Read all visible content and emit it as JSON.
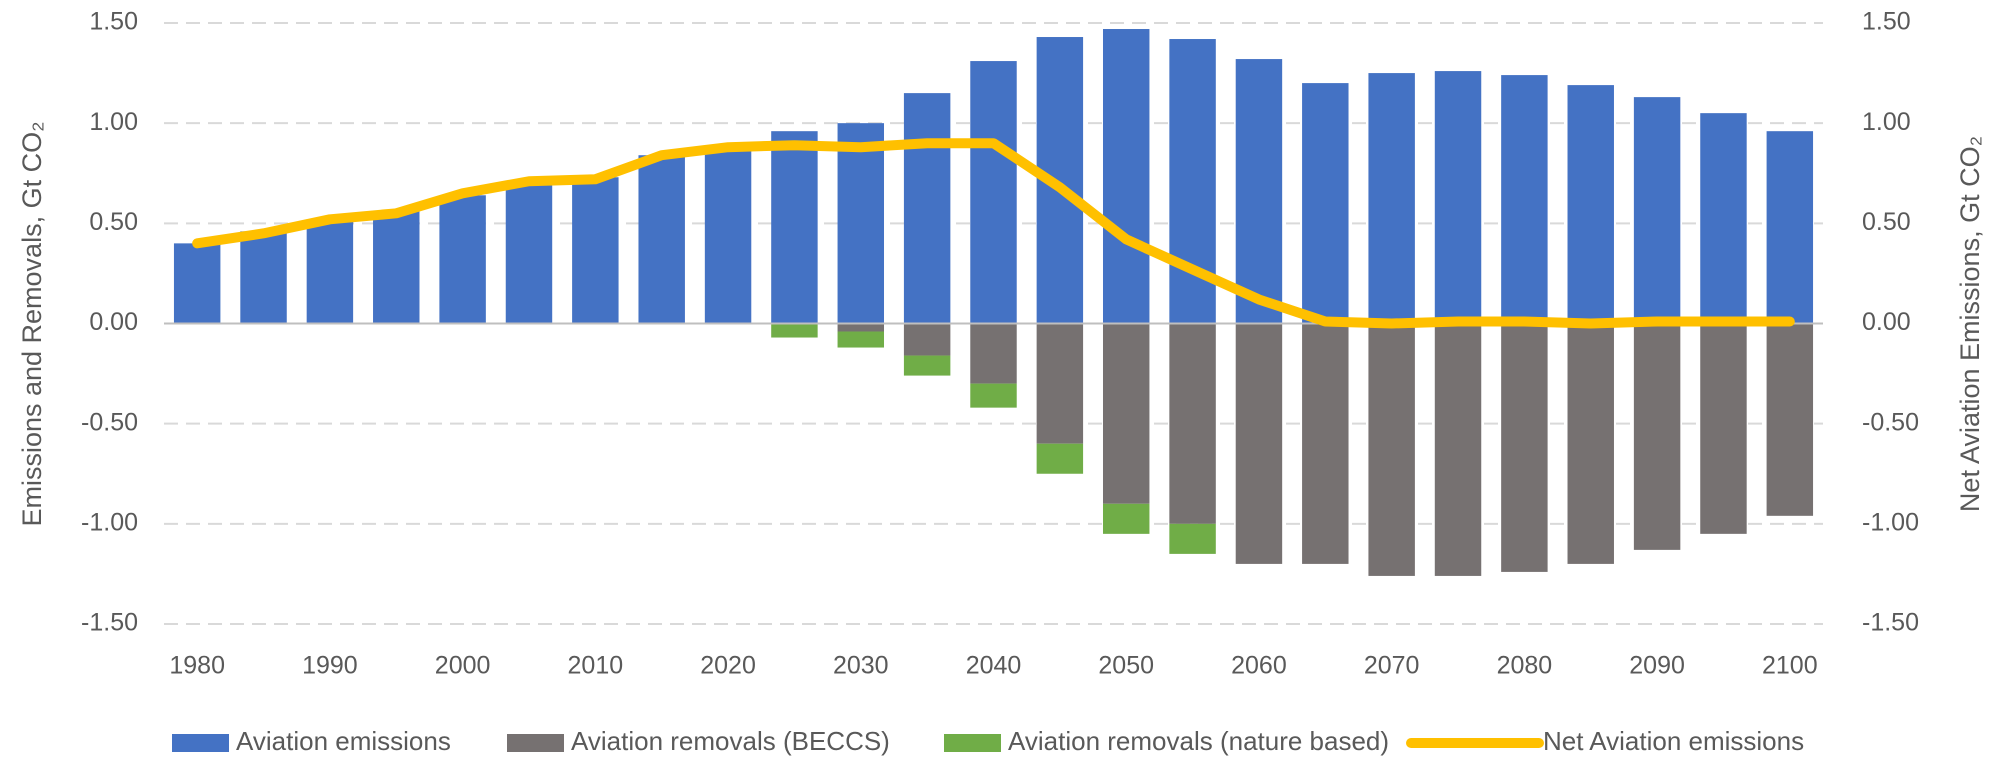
{
  "chart_data": {
    "type": "bar",
    "x": [
      1980,
      1985,
      1990,
      1995,
      2000,
      2005,
      2010,
      2015,
      2020,
      2025,
      2030,
      2035,
      2040,
      2045,
      2050,
      2055,
      2060,
      2065,
      2070,
      2075,
      2080,
      2085,
      2090,
      2095,
      2100
    ],
    "xlim": [
      1977.5,
      2102.5
    ],
    "xticks": [
      1980,
      1990,
      2000,
      2010,
      2020,
      2030,
      2040,
      2050,
      2060,
      2070,
      2080,
      2090,
      2100
    ],
    "ylim": [
      -1.5,
      1.5
    ],
    "yticks": [
      {
        "value": 1.5,
        "label": "1.50"
      },
      {
        "value": 1,
        "label": "1.00"
      },
      {
        "value": 0.5,
        "label": "0.50"
      },
      {
        "value": 0,
        "label": "0.00"
      },
      {
        "value": -0.5,
        "label": "-0.50"
      },
      {
        "value": -1,
        "label": "-1.00"
      },
      {
        "value": -1.5,
        "label": "-1.50"
      }
    ],
    "y2lim": [
      -1.5,
      1.5
    ],
    "y2ticks": [
      {
        "value": 1.5,
        "label": "1.50"
      },
      {
        "value": 1,
        "label": "1.00"
      },
      {
        "value": 0.5,
        "label": "0.50"
      },
      {
        "value": 0,
        "label": "0.00"
      },
      {
        "value": -0.5,
        "label": "-0.50"
      },
      {
        "value": -1,
        "label": "-1.00"
      },
      {
        "value": -1.5,
        "label": "-1.50"
      }
    ],
    "ylabel": "Emissions and Removals, Gt CO₂",
    "y2label": "Net Aviation Emissions, Gt CO₂",
    "grid": true,
    "legend": "bottom",
    "series": [
      {
        "name": "Aviation emissions",
        "type": "bar",
        "color": "#4472c4",
        "values": [
          0.4,
          0.46,
          0.52,
          0.56,
          0.64,
          0.7,
          0.73,
          0.84,
          0.88,
          0.96,
          1.0,
          1.15,
          1.31,
          1.43,
          1.47,
          1.42,
          1.32,
          1.2,
          1.25,
          1.26,
          1.24,
          1.19,
          1.13,
          1.05,
          0.96
        ]
      },
      {
        "name": "Aviation removals (BECCS)",
        "type": "bar",
        "color": "#767171",
        "values": [
          0,
          0,
          0,
          0,
          0,
          0,
          0,
          0,
          0,
          0,
          -0.04,
          -0.16,
          -0.3,
          -0.6,
          -0.9,
          -1.0,
          -1.2,
          -1.2,
          -1.26,
          -1.26,
          -1.24,
          -1.2,
          -1.13,
          -1.05,
          -0.96
        ]
      },
      {
        "name": "Aviation removals (nature based)",
        "type": "bar",
        "color": "#70ad47",
        "values": [
          0,
          0,
          0,
          0,
          0,
          0,
          0,
          0,
          0,
          -0.07,
          -0.08,
          -0.1,
          -0.12,
          -0.15,
          -0.15,
          -0.15,
          0,
          0,
          0,
          0,
          0,
          0,
          0,
          0,
          0
        ]
      },
      {
        "name": "Net Aviation emissions",
        "type": "line",
        "axis": "y2",
        "color": "#ffc000",
        "values": [
          0.4,
          0.45,
          0.52,
          0.55,
          0.65,
          0.71,
          0.72,
          0.84,
          0.88,
          0.89,
          0.88,
          0.9,
          0.9,
          0.68,
          0.42,
          0.27,
          0.12,
          0.01,
          0.0,
          0.01,
          0.01,
          0.0,
          0.01,
          0.01,
          0.01
        ]
      }
    ]
  }
}
